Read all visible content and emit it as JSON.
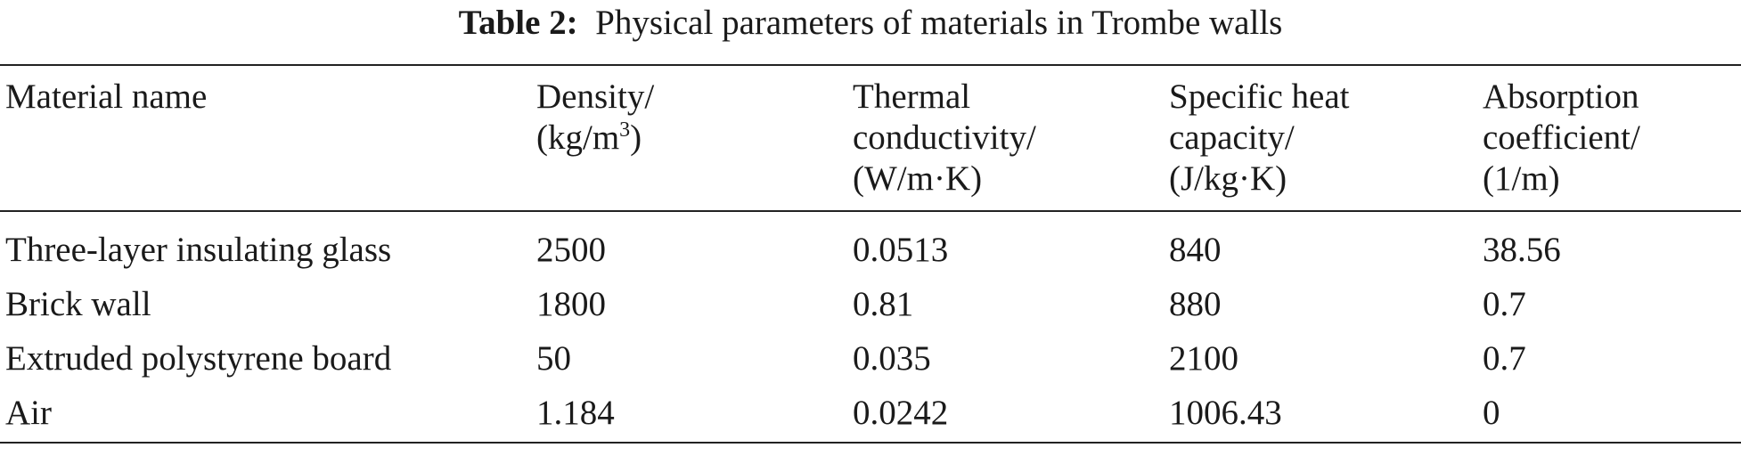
{
  "caption": {
    "label": "Table 2:",
    "text": "Physical parameters of materials in Trombe walls"
  },
  "columns": [
    {
      "lines": [
        "Material name"
      ]
    },
    {
      "lines": [
        "Density/",
        "(kg/m",
        ")"
      ],
      "sup": "3"
    },
    {
      "lines": [
        "Thermal",
        "conductivity/",
        "(W/m·K)"
      ]
    },
    {
      "lines": [
        "Specific heat",
        "capacity/",
        "(J/kg·K)"
      ]
    },
    {
      "lines": [
        "Absorption",
        "coefficient/",
        "(1/m)"
      ]
    }
  ],
  "rows": [
    [
      "Three-layer insulating glass",
      "2500",
      "0.0513",
      "840",
      "38.56"
    ],
    [
      "Brick wall",
      "1800",
      "0.81",
      "880",
      "0.7"
    ],
    [
      "Extruded polystyrene board",
      "50",
      "0.035",
      "2100",
      "0.7"
    ],
    [
      "Air",
      "1.184",
      "0.0242",
      "1006.43",
      "0"
    ]
  ]
}
